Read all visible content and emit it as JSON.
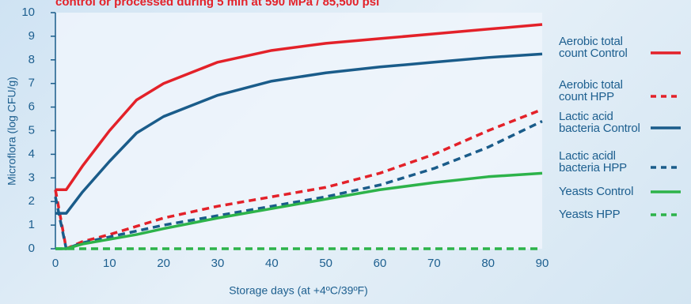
{
  "chart_data": {
    "type": "line",
    "title": "control or processed during 5 min at 590 MPa / 85,500 psi",
    "x_label": "Storage days (at +4ºC/39ºF)",
    "y_label": "Microflora (log CFU/g)",
    "x": [
      0,
      2,
      5,
      10,
      15,
      20,
      30,
      40,
      50,
      60,
      70,
      80,
      90
    ],
    "series": [
      {
        "name": "Aerobic total count Control",
        "color": "#e32129",
        "style": "solid",
        "values": [
          2.5,
          2.5,
          3.5,
          5.0,
          6.3,
          7.0,
          7.9,
          8.4,
          8.7,
          8.9,
          9.1,
          9.3,
          9.5
        ]
      },
      {
        "name": "Aerobic total count HPP",
        "color": "#e32129",
        "style": "dashed",
        "values": [
          2.5,
          0,
          0.3,
          0.6,
          0.95,
          1.3,
          1.8,
          2.2,
          2.6,
          3.2,
          4.0,
          5.0,
          5.9
        ]
      },
      {
        "name": "Lactic acid bacteria Control",
        "color": "#1a5c8a",
        "style": "solid",
        "values": [
          1.5,
          1.5,
          2.4,
          3.7,
          4.9,
          5.6,
          6.5,
          7.1,
          7.45,
          7.7,
          7.9,
          8.1,
          8.25
        ]
      },
      {
        "name": "Lactic acidl bacteria HPP",
        "color": "#1a5c8a",
        "style": "dashed",
        "values": [
          2.2,
          0,
          0.25,
          0.5,
          0.75,
          1.0,
          1.4,
          1.8,
          2.2,
          2.7,
          3.4,
          4.3,
          5.4
        ]
      },
      {
        "name": "Yeasts Control",
        "color": "#2db34a",
        "style": "solid",
        "values": [
          0,
          0,
          0.2,
          0.4,
          0.6,
          0.85,
          1.3,
          1.7,
          2.1,
          2.5,
          2.8,
          3.05,
          3.2
        ]
      },
      {
        "name": "Yeasts HPP",
        "color": "#2db34a",
        "style": "dashed",
        "values": [
          0,
          0,
          0,
          0,
          0,
          0,
          0,
          0,
          0,
          0,
          0,
          0,
          0
        ]
      }
    ],
    "xlim": [
      0,
      90
    ],
    "xticks": [
      0,
      10,
      20,
      30,
      40,
      50,
      60,
      70,
      80,
      90
    ],
    "ylim": [
      0,
      10
    ],
    "yticks": [
      0,
      1,
      2,
      3,
      4,
      5,
      6,
      7,
      8,
      9,
      10
    ],
    "legend": "right"
  }
}
